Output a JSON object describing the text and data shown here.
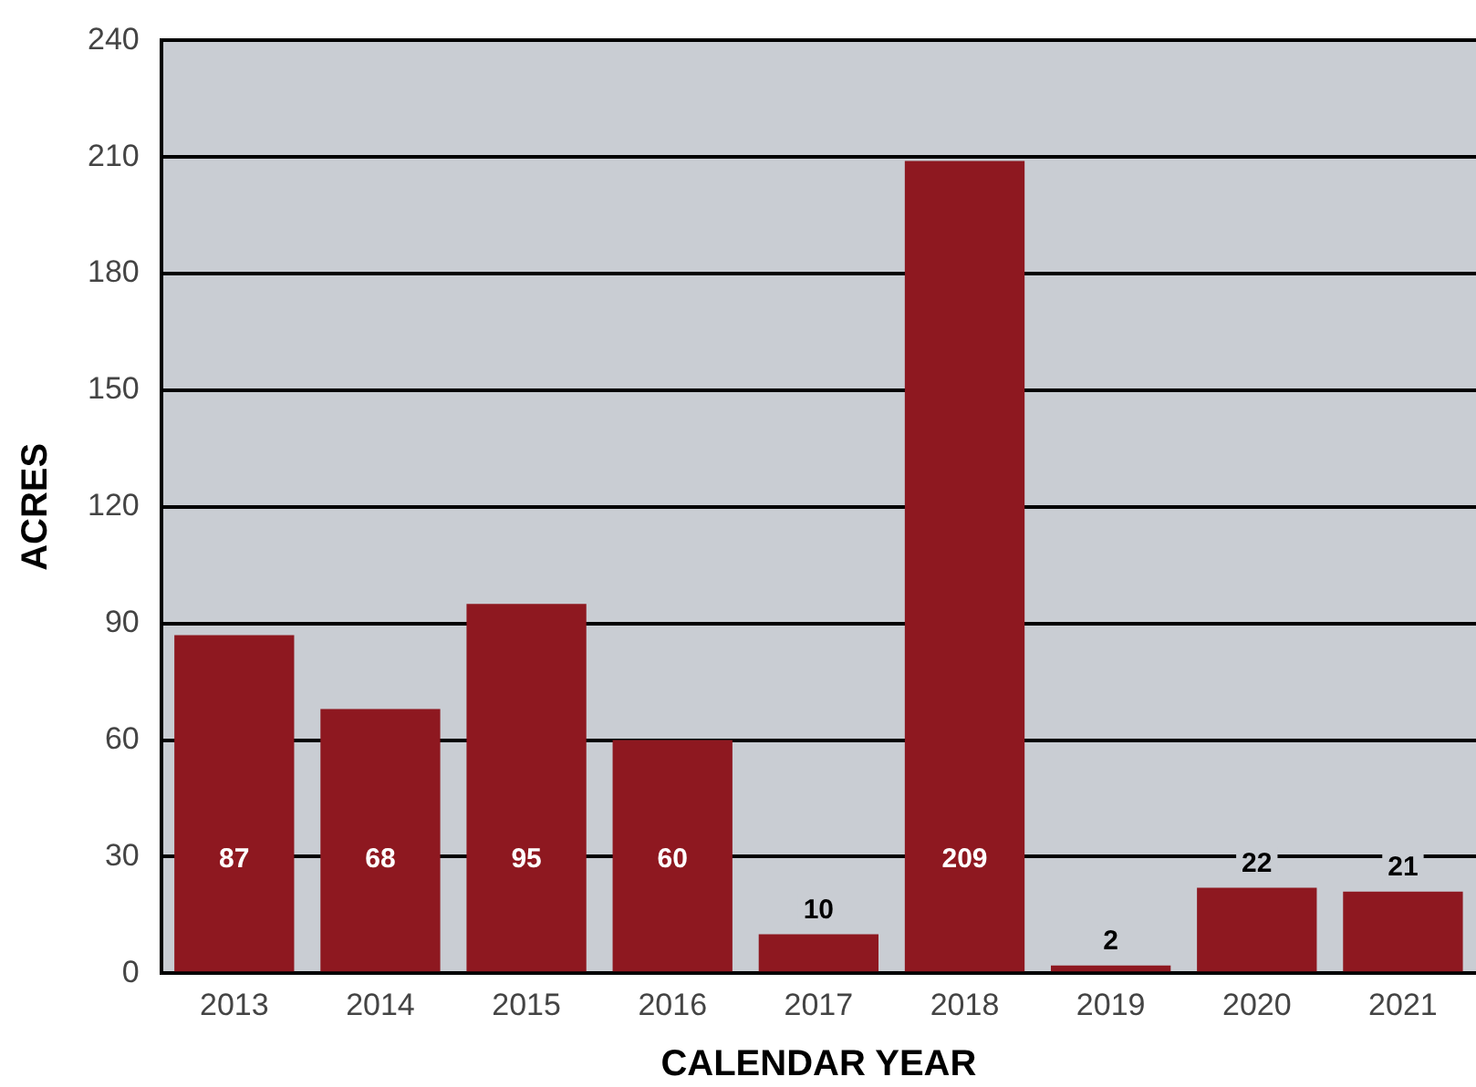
{
  "chart_data": {
    "type": "bar",
    "xlabel": "CALENDAR YEAR",
    "ylabel": "ACRES",
    "categories": [
      "2013",
      "2014",
      "2015",
      "2016",
      "2017",
      "2018",
      "2019",
      "2020",
      "2021"
    ],
    "values": [
      87,
      68,
      95,
      60,
      10,
      209,
      2,
      22,
      21
    ],
    "color": "#8e1820",
    "ylim": [
      0,
      240
    ],
    "yticks": [
      0,
      30,
      60,
      90,
      120,
      150,
      180,
      210,
      240
    ],
    "grid": "y",
    "legend": false,
    "data_labels": true
  }
}
